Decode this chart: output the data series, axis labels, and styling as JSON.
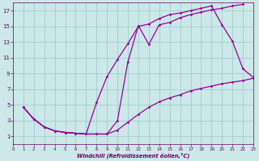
{
  "line1": {
    "x": [
      1,
      2,
      3,
      4,
      5,
      6,
      7,
      8,
      9,
      10,
      11,
      12,
      13,
      14,
      15,
      16,
      17,
      18,
      19,
      20,
      21,
      22
    ],
    "y": [
      4.7,
      3.2,
      2.2,
      1.7,
      1.5,
      1.4,
      1.3,
      1.3,
      1.3,
      3.0,
      10.5,
      15.1,
      12.7,
      15.2,
      15.5,
      16.1,
      16.5,
      16.8,
      17.1,
      17.3,
      17.6,
      17.8
    ]
  },
  "line2": {
    "x": [
      1,
      2,
      3,
      4,
      5,
      6,
      7,
      8,
      9,
      10,
      11,
      12,
      13,
      14,
      15,
      16,
      17,
      18,
      19,
      20,
      21,
      22,
      23
    ],
    "y": [
      4.7,
      3.2,
      2.2,
      1.7,
      1.5,
      1.4,
      1.3,
      5.3,
      8.6,
      10.8,
      12.8,
      15.0,
      15.3,
      16.0,
      16.5,
      16.7,
      17.0,
      17.3,
      17.6,
      15.2,
      13.1,
      9.6,
      8.5
    ]
  },
  "line3": {
    "x": [
      1,
      2,
      3,
      4,
      5,
      6,
      7,
      8,
      9,
      10,
      11,
      12,
      13,
      14,
      15,
      16,
      17,
      18,
      19,
      20,
      21,
      22,
      23
    ],
    "y": [
      4.7,
      3.2,
      2.2,
      1.7,
      1.5,
      1.4,
      1.3,
      1.3,
      1.3,
      1.8,
      2.8,
      3.8,
      4.7,
      5.4,
      5.9,
      6.3,
      6.8,
      7.1,
      7.4,
      7.7,
      7.9,
      8.1,
      8.4
    ]
  },
  "color": "#990099",
  "marker": "D",
  "markersize": 1.8,
  "linewidth": 0.9,
  "xlim": [
    0,
    23
  ],
  "ylim": [
    0,
    18
  ],
  "xticks": [
    0,
    1,
    2,
    3,
    4,
    5,
    6,
    7,
    8,
    9,
    10,
    11,
    12,
    13,
    14,
    15,
    16,
    17,
    18,
    19,
    20,
    21,
    22,
    23
  ],
  "yticks": [
    1,
    3,
    5,
    7,
    9,
    11,
    13,
    15,
    17
  ],
  "xlabel": "Windchill (Refroidissement éolien,°C)",
  "bg_color": "#cce8e8",
  "grid_color": "#99cccc",
  "axis_color": "#660066",
  "tick_color": "#660066",
  "xlabel_color": "#660066"
}
